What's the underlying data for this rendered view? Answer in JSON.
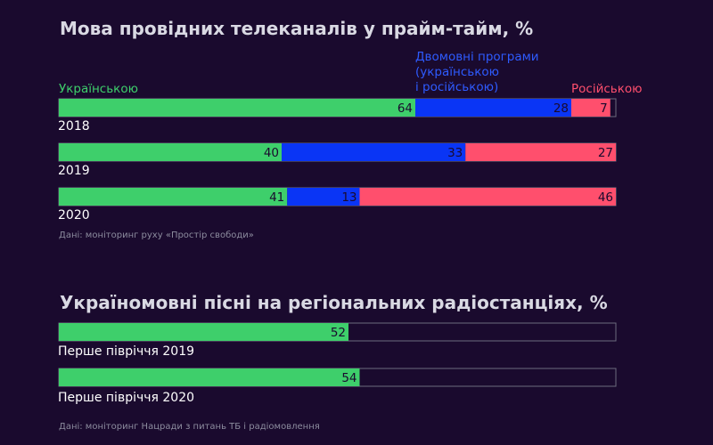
{
  "chart_data": [
    {
      "type": "bar",
      "stacked": true,
      "orientation": "horizontal",
      "title": "Мова провідних телеканалів у прайм-тайм, %",
      "categories": [
        "2018",
        "2019",
        "2020"
      ],
      "series": [
        {
          "name": "Українською",
          "values": [
            64,
            40,
            41
          ],
          "color": "#3ecf6b"
        },
        {
          "name": "Двомовні програми\n(українською\nі російською)",
          "values": [
            28,
            33,
            13
          ],
          "color": "#0a35f5"
        },
        {
          "name": "Російською",
          "values": [
            7,
            27,
            46
          ],
          "color": "#ff4f6d"
        }
      ],
      "xlim": [
        0,
        100
      ],
      "grid": false,
      "legend": "top",
      "source": "Дані: моніторинг руху «Простір свободи»"
    },
    {
      "type": "bar",
      "orientation": "horizontal",
      "title": "Україномовні пісні на регіональних радіостанціях, %",
      "categories": [
        "Перше півріччя 2019",
        "Перше півріччя 2020"
      ],
      "values": [
        52,
        54
      ],
      "color": "#3ecf6b",
      "xlim": [
        0,
        100
      ],
      "grid": false,
      "source": "Дані: моніторинг Нацради з питань ТБ і радіомовлення"
    }
  ]
}
